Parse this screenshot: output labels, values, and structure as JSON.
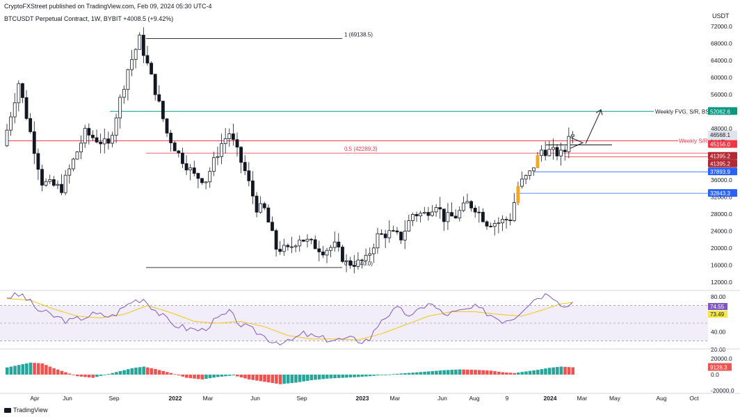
{
  "header": {
    "published": "CryptoFXStreet published on TradingView.com, Feb 09, 2024 05:30 UTC-4",
    "symbol": "BTCUSDT Perpetual Contract, 1W, BYBIT",
    "change": "+4008.5 (+9.42%)"
  },
  "footer": {
    "brand": "TradingView"
  },
  "chart_data": {
    "type": "candlestick",
    "price_axis": {
      "unit": "USDT",
      "ticks": [
        12000,
        16000,
        20000,
        24000,
        28000,
        32000,
        36000,
        40000,
        44000,
        48000,
        52000,
        56000,
        60000,
        64000,
        68000,
        72000
      ],
      "tick_labels": [
        "12000.0",
        "16000.0",
        "20000.0",
        "24000.0",
        "28000.0",
        "32000.0",
        "36000.0",
        "40000.0",
        "44000.0",
        "48000.0",
        "52000.0",
        "56000.0",
        "60000.0",
        "64000.0",
        "68000.0",
        "72000.0"
      ]
    },
    "time_axis": {
      "labels": [
        "Apr",
        "Jun",
        "Sep",
        "2022",
        "Mar",
        "Jun",
        "Sep",
        "2023",
        "Mar",
        "Jun",
        "Aug",
        "9",
        "2024",
        "Mar",
        "May",
        "Aug",
        "Oct"
      ]
    },
    "price_path": [
      [
        0,
        44000
      ],
      [
        4,
        58800
      ],
      [
        10,
        35500
      ],
      [
        15,
        34000
      ],
      [
        21,
        47000
      ],
      [
        27,
        44000
      ],
      [
        32,
        62000
      ],
      [
        35,
        69000
      ],
      [
        39,
        57000
      ],
      [
        42,
        47000
      ],
      [
        45,
        42000
      ],
      [
        49,
        37000
      ],
      [
        52,
        36000
      ],
      [
        56,
        44500
      ],
      [
        58,
        47000
      ],
      [
        62,
        38000
      ],
      [
        65,
        29500
      ],
      [
        67,
        29000
      ],
      [
        70,
        20000
      ],
      [
        73,
        19500
      ],
      [
        76,
        22500
      ],
      [
        79,
        21000
      ],
      [
        82,
        19500
      ],
      [
        85,
        20500
      ],
      [
        88,
        16500
      ],
      [
        91,
        16500
      ],
      [
        93,
        17200
      ],
      [
        96,
        22800
      ],
      [
        99,
        23500
      ],
      [
        102,
        22500
      ],
      [
        105,
        28000
      ],
      [
        108,
        28000
      ],
      [
        111,
        30500
      ],
      [
        113,
        27000
      ],
      [
        116,
        27500
      ],
      [
        119,
        30500
      ],
      [
        121,
        29500
      ],
      [
        124,
        26000
      ],
      [
        127,
        26000
      ],
      [
        130,
        27000
      ],
      [
        132,
        34500
      ],
      [
        135,
        37500
      ],
      [
        138,
        43000
      ],
      [
        141,
        42500
      ],
      [
        143,
        42000
      ],
      [
        144,
        42800
      ],
      [
        145,
        47000
      ]
    ],
    "levels": [
      {
        "label": "1 (69138.5)",
        "price": 69138.5
      },
      {
        "label": "0.5 (42289.3)",
        "price": 42289.3
      },
      {
        "label": "0 (15440.0)",
        "price": 15440.0
      },
      {
        "label": "Weekly FVG, S/R, BSL",
        "price": 52062.6,
        "tag": "52062.6",
        "color": "#089981"
      },
      {
        "label": "Weekly S/R",
        "price": 45156.0,
        "tag": "45156.0",
        "color": "#f23645"
      },
      {
        "label": "",
        "price": 41395.2,
        "tag": "41395.2",
        "color": "#f23645"
      },
      {
        "label": "",
        "price": 37893.9,
        "tag": "37893.9",
        "color": "#2962ff"
      },
      {
        "label": "",
        "price": 32843.3,
        "tag": "32843.3",
        "color": "#2962ff"
      }
    ],
    "price_tags": [
      {
        "price": 46568.1,
        "text": "46568.1",
        "color": "#e6e6e6"
      },
      {
        "text": "2d 15h",
        "color": "#e6e6e6"
      },
      {
        "price": 45156.0,
        "text": "45156.0",
        "color": "#f23645"
      },
      {
        "text": "41395.2",
        "color": "#f23645"
      }
    ],
    "rsi": {
      "ticks": [
        20,
        40,
        60,
        80
      ],
      "tick_labels": [
        "20.00",
        "40.00",
        "60.00",
        "80.00"
      ],
      "band": [
        30,
        70
      ],
      "rsi_value": "74.55",
      "ma_value": "73.49",
      "rsi_path": [
        [
          0,
          80
        ],
        [
          4,
          82
        ],
        [
          8,
          65
        ],
        [
          12,
          58
        ],
        [
          16,
          52
        ],
        [
          22,
          60
        ],
        [
          27,
          58
        ],
        [
          32,
          75
        ],
        [
          35,
          78
        ],
        [
          38,
          65
        ],
        [
          42,
          50
        ],
        [
          46,
          44
        ],
        [
          50,
          42
        ],
        [
          54,
          55
        ],
        [
          57,
          62
        ],
        [
          60,
          48
        ],
        [
          64,
          40
        ],
        [
          68,
          30
        ],
        [
          72,
          28
        ],
        [
          76,
          38
        ],
        [
          80,
          33
        ],
        [
          84,
          31
        ],
        [
          88,
          32
        ],
        [
          91,
          30
        ],
        [
          93,
          32
        ],
        [
          96,
          55
        ],
        [
          100,
          66
        ],
        [
          104,
          58
        ],
        [
          108,
          74
        ],
        [
          112,
          60
        ],
        [
          116,
          63
        ],
        [
          120,
          68
        ],
        [
          123,
          62
        ],
        [
          127,
          53
        ],
        [
          130,
          57
        ],
        [
          133,
          70
        ],
        [
          136,
          80
        ],
        [
          139,
          84
        ],
        [
          141,
          78
        ],
        [
          143,
          68
        ],
        [
          145,
          74.55
        ]
      ],
      "ma_path": [
        [
          0,
          78
        ],
        [
          6,
          76
        ],
        [
          12,
          66
        ],
        [
          18,
          58
        ],
        [
          24,
          56
        ],
        [
          30,
          60
        ],
        [
          36,
          70
        ],
        [
          42,
          62
        ],
        [
          48,
          52
        ],
        [
          54,
          50
        ],
        [
          60,
          52
        ],
        [
          66,
          46
        ],
        [
          72,
          36
        ],
        [
          78,
          32
        ],
        [
          84,
          32
        ],
        [
          90,
          31
        ],
        [
          96,
          38
        ],
        [
          102,
          48
        ],
        [
          108,
          58
        ],
        [
          114,
          63
        ],
        [
          120,
          63
        ],
        [
          126,
          60
        ],
        [
          132,
          58
        ],
        [
          138,
          66
        ],
        [
          142,
          72
        ],
        [
          145,
          73.49
        ]
      ]
    },
    "macd": {
      "ticks": [
        -20000,
        0,
        20000
      ],
      "tick_labels": [
        "-20000.0",
        "0.0",
        "20000.0"
      ],
      "value": "9128.3",
      "hist_path": [
        [
          0,
          9000
        ],
        [
          3,
          12000
        ],
        [
          6,
          15000
        ],
        [
          9,
          14000
        ],
        [
          12,
          8000
        ],
        [
          15,
          3000
        ],
        [
          18,
          -2000
        ],
        [
          22,
          -4000
        ],
        [
          27,
          2000
        ],
        [
          32,
          8000
        ],
        [
          35,
          10000
        ],
        [
          38,
          7000
        ],
        [
          42,
          2000
        ],
        [
          46,
          -4000
        ],
        [
          50,
          -6000
        ],
        [
          54,
          -3000
        ],
        [
          58,
          -1000
        ],
        [
          62,
          -6000
        ],
        [
          66,
          -9000
        ],
        [
          70,
          -12000
        ],
        [
          74,
          -10000
        ],
        [
          78,
          -7000
        ],
        [
          82,
          -5000
        ],
        [
          86,
          -4000
        ],
        [
          90,
          -3000
        ],
        [
          93,
          -2000
        ],
        [
          96,
          -500
        ],
        [
          100,
          1000
        ],
        [
          104,
          2500
        ],
        [
          108,
          4000
        ],
        [
          112,
          5500
        ],
        [
          116,
          6500
        ],
        [
          120,
          6000
        ],
        [
          124,
          5000
        ],
        [
          127,
          3000
        ],
        [
          130,
          2000
        ],
        [
          133,
          4000
        ],
        [
          136,
          6000
        ],
        [
          139,
          8500
        ],
        [
          142,
          10000
        ],
        [
          145,
          9128.3
        ]
      ]
    }
  }
}
